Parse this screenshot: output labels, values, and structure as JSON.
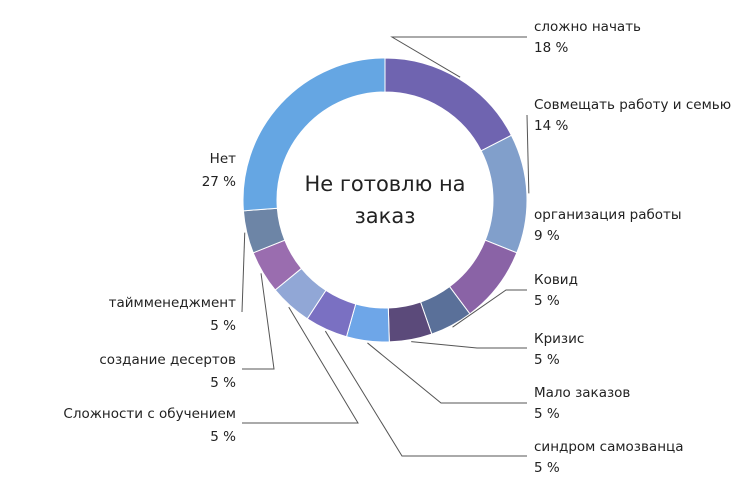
{
  "chart_data": {
    "type": "pie",
    "donut": true,
    "title": "Не готовлю на заказ",
    "slices": [
      {
        "label": "сложно начать",
        "value": 18,
        "value_label": "18 %",
        "color": "#6f64b0"
      },
      {
        "label": "Совмещать работу и семью",
        "value": 14,
        "value_label": "14 %",
        "color": "#819fcb"
      },
      {
        "label": "организация работы",
        "value": 9,
        "value_label": "9 %",
        "color": "#8a63a6"
      },
      {
        "label": "Ковид",
        "value": 5,
        "value_label": "5 %",
        "color": "#5a7099"
      },
      {
        "label": "Кризис",
        "value": 5,
        "value_label": "5 %",
        "color": "#5b4a7a"
      },
      {
        "label": "Мало заказов",
        "value": 5,
        "value_label": "5 %",
        "color": "#6ea6e8"
      },
      {
        "label": "синдром самозванца",
        "value": 5,
        "value_label": "5 %",
        "color": "#7a70c2"
      },
      {
        "label": "Сложности с обучением",
        "value": 5,
        "value_label": "5 %",
        "color": "#91a7d6"
      },
      {
        "label": "создание десертов",
        "value": 5,
        "value_label": "5 %",
        "color": "#9a6daf"
      },
      {
        "label": "таймменеджмент",
        "value": 5,
        "value_label": "5 %",
        "color": "#6d85a6"
      },
      {
        "label": "Нет",
        "value": 27,
        "value_label": "27 %",
        "color": "#65a6e3"
      }
    ]
  }
}
